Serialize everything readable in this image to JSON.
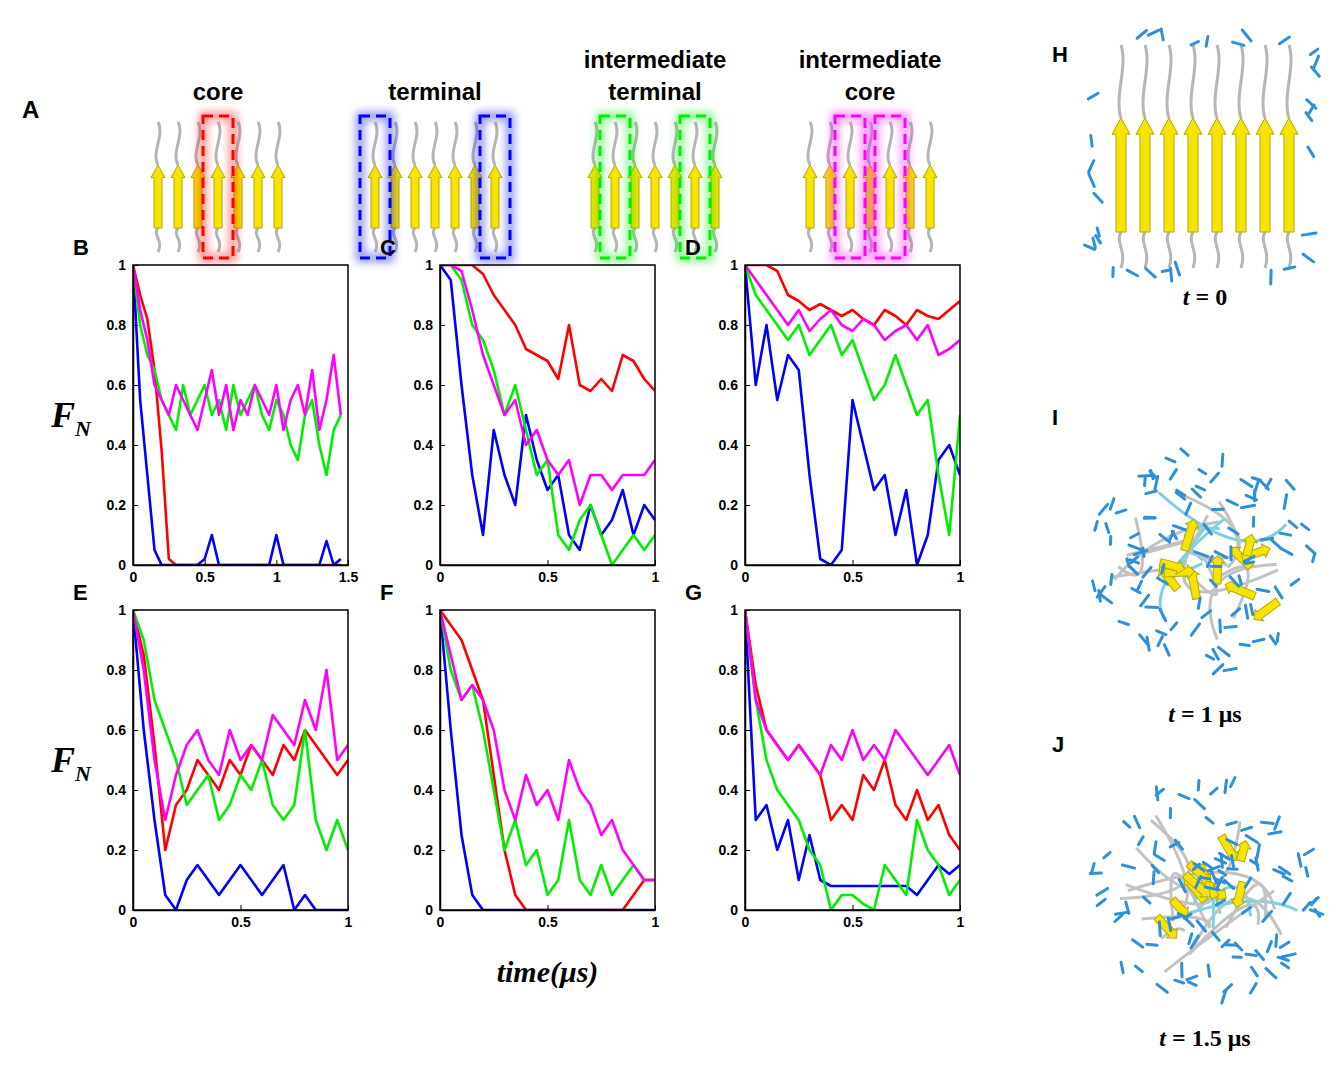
{
  "figure": {
    "panel_a": {
      "label": "A",
      "regions": [
        {
          "name": "core",
          "color": "#ff0000"
        },
        {
          "name": "terminal",
          "color": "#0000ff"
        },
        {
          "name": "intermediate terminal",
          "color": "#00ee00"
        },
        {
          "name": "intermediate core",
          "color": "#ff00ff"
        }
      ]
    },
    "y_title": "F",
    "y_title_subscript": "N",
    "x_title": "time(μs)",
    "snapshots": [
      {
        "label": "H",
        "caption": "t = 0"
      },
      {
        "label": "I",
        "caption": "t = 1 μs"
      },
      {
        "label": "J",
        "caption": "t = 1.5 μs"
      }
    ]
  },
  "chart_data": [
    {
      "type": "line",
      "title": "B",
      "x": [
        0,
        0.05,
        0.1,
        0.15,
        0.2,
        0.25,
        0.3,
        0.35,
        0.4,
        0.45,
        0.5,
        0.55,
        0.6,
        0.65,
        0.7,
        0.75,
        0.8,
        0.85,
        0.9,
        0.95,
        1,
        1.05,
        1.1,
        1.15,
        1.2,
        1.25,
        1.3,
        1.35,
        1.4,
        1.45
      ],
      "xlim": [
        0,
        1.5
      ],
      "xticks": [
        0,
        0.5,
        1,
        1.5
      ],
      "ylim": [
        0,
        1
      ],
      "yticks": [
        0,
        0.2,
        0.4,
        0.6,
        0.8,
        1
      ],
      "series": [
        {
          "color": "#ff0000",
          "values": [
            1,
            0.9,
            0.82,
            0.65,
            0.38,
            0.02,
            0,
            0,
            0,
            0,
            0,
            0,
            0,
            0,
            0,
            0,
            0,
            0,
            0,
            0,
            0,
            0,
            0,
            0,
            0,
            0,
            0,
            0,
            0,
            0
          ]
        },
        {
          "color": "#0000ff",
          "values": [
            1,
            0.55,
            0.3,
            0.05,
            0,
            0,
            0,
            0,
            0,
            0,
            0.02,
            0.1,
            0,
            0,
            0,
            0,
            0,
            0,
            0,
            0,
            0.1,
            0,
            0,
            0,
            0,
            0,
            0,
            0.08,
            0,
            0.02
          ]
        },
        {
          "color": "#00ee00",
          "values": [
            1,
            0.8,
            0.7,
            0.65,
            0.55,
            0.5,
            0.45,
            0.6,
            0.5,
            0.55,
            0.6,
            0.5,
            0.55,
            0.45,
            0.6,
            0.5,
            0.55,
            0.6,
            0.5,
            0.45,
            0.55,
            0.5,
            0.4,
            0.35,
            0.5,
            0.55,
            0.4,
            0.3,
            0.45,
            0.5
          ]
        },
        {
          "color": "#ff00ff",
          "values": [
            1,
            0.85,
            0.75,
            0.6,
            0.55,
            0.5,
            0.6,
            0.55,
            0.5,
            0.45,
            0.55,
            0.65,
            0.5,
            0.6,
            0.45,
            0.55,
            0.5,
            0.6,
            0.55,
            0.5,
            0.6,
            0.45,
            0.55,
            0.6,
            0.5,
            0.65,
            0.45,
            0.55,
            0.7,
            0.5
          ]
        }
      ]
    },
    {
      "type": "line",
      "title": "C",
      "x": [
        0,
        0.05,
        0.1,
        0.15,
        0.2,
        0.25,
        0.3,
        0.35,
        0.4,
        0.45,
        0.5,
        0.55,
        0.6,
        0.65,
        0.7,
        0.75,
        0.8,
        0.85,
        0.9,
        0.95,
        1
      ],
      "xlim": [
        0,
        1
      ],
      "xticks": [
        0,
        0.5,
        1
      ],
      "ylim": [
        0,
        1
      ],
      "yticks": [
        0,
        0.2,
        0.4,
        0.6,
        0.8,
        1
      ],
      "series": [
        {
          "color": "#ff0000",
          "values": [
            1,
            1,
            1,
            1,
            0.97,
            0.9,
            0.85,
            0.8,
            0.72,
            0.7,
            0.68,
            0.62,
            0.8,
            0.6,
            0.58,
            0.62,
            0.58,
            0.7,
            0.68,
            0.62,
            0.58
          ]
        },
        {
          "color": "#0000ff",
          "values": [
            1,
            0.95,
            0.6,
            0.3,
            0.1,
            0.45,
            0.3,
            0.2,
            0.5,
            0.35,
            0.25,
            0.3,
            0.1,
            0.05,
            0.2,
            0.1,
            0.15,
            0.25,
            0.1,
            0.2,
            0.15
          ]
        },
        {
          "color": "#00ee00",
          "values": [
            1,
            1,
            0.95,
            0.8,
            0.75,
            0.65,
            0.5,
            0.6,
            0.45,
            0.3,
            0.35,
            0.1,
            0.05,
            0.15,
            0.2,
            0.1,
            0,
            0.05,
            0.1,
            0.05,
            0.1
          ]
        },
        {
          "color": "#ff00ff",
          "values": [
            1,
            1,
            0.98,
            0.85,
            0.7,
            0.6,
            0.5,
            0.55,
            0.4,
            0.45,
            0.35,
            0.3,
            0.35,
            0.2,
            0.3,
            0.3,
            0.25,
            0.3,
            0.3,
            0.3,
            0.35
          ]
        }
      ]
    },
    {
      "type": "line",
      "title": "D",
      "x": [
        0,
        0.05,
        0.1,
        0.15,
        0.2,
        0.25,
        0.3,
        0.35,
        0.4,
        0.45,
        0.5,
        0.55,
        0.6,
        0.65,
        0.7,
        0.75,
        0.8,
        0.85,
        0.9,
        0.95,
        1
      ],
      "xlim": [
        0,
        1
      ],
      "xticks": [
        0,
        0.5,
        1
      ],
      "ylim": [
        0,
        1
      ],
      "yticks": [
        0,
        0.2,
        0.4,
        0.6,
        0.8,
        1
      ],
      "series": [
        {
          "color": "#ff0000",
          "values": [
            1,
            1,
            1,
            0.98,
            0.9,
            0.88,
            0.85,
            0.87,
            0.85,
            0.83,
            0.85,
            0.82,
            0.8,
            0.85,
            0.83,
            0.8,
            0.85,
            0.83,
            0.82,
            0.85,
            0.88
          ]
        },
        {
          "color": "#0000ff",
          "values": [
            1,
            0.6,
            0.8,
            0.55,
            0.7,
            0.65,
            0.3,
            0.02,
            0,
            0.05,
            0.55,
            0.4,
            0.25,
            0.3,
            0.1,
            0.25,
            0,
            0.1,
            0.35,
            0.4,
            0.3
          ]
        },
        {
          "color": "#00ee00",
          "values": [
            1,
            0.9,
            0.85,
            0.8,
            0.75,
            0.8,
            0.7,
            0.75,
            0.8,
            0.7,
            0.75,
            0.65,
            0.55,
            0.6,
            0.7,
            0.6,
            0.5,
            0.55,
            0.3,
            0.1,
            0.5
          ]
        },
        {
          "color": "#ff00ff",
          "values": [
            1,
            0.95,
            0.9,
            0.85,
            0.8,
            0.85,
            0.78,
            0.82,
            0.85,
            0.8,
            0.78,
            0.82,
            0.8,
            0.75,
            0.78,
            0.8,
            0.75,
            0.8,
            0.7,
            0.72,
            0.75
          ]
        }
      ]
    },
    {
      "type": "line",
      "title": "E",
      "x": [
        0,
        0.05,
        0.1,
        0.15,
        0.2,
        0.25,
        0.3,
        0.35,
        0.4,
        0.45,
        0.5,
        0.55,
        0.6,
        0.65,
        0.7,
        0.75,
        0.8,
        0.85,
        0.9,
        0.95,
        1
      ],
      "xlim": [
        0,
        1
      ],
      "xticks": [
        0,
        0.5,
        1
      ],
      "ylim": [
        0,
        1
      ],
      "yticks": [
        0,
        0.2,
        0.4,
        0.6,
        0.8,
        1
      ],
      "series": [
        {
          "color": "#ff0000",
          "values": [
            1,
            0.85,
            0.55,
            0.2,
            0.35,
            0.4,
            0.5,
            0.45,
            0.4,
            0.5,
            0.45,
            0.55,
            0.5,
            0.45,
            0.55,
            0.5,
            0.6,
            0.55,
            0.5,
            0.45,
            0.5
          ]
        },
        {
          "color": "#0000ff",
          "values": [
            1,
            0.6,
            0.3,
            0.05,
            0,
            0.1,
            0.15,
            0.1,
            0.05,
            0.1,
            0.15,
            0.1,
            0.05,
            0.1,
            0.15,
            0,
            0.05,
            0,
            0,
            0,
            0
          ]
        },
        {
          "color": "#00ee00",
          "values": [
            1,
            0.9,
            0.7,
            0.6,
            0.5,
            0.35,
            0.4,
            0.45,
            0.3,
            0.35,
            0.45,
            0.4,
            0.5,
            0.35,
            0.3,
            0.35,
            0.6,
            0.3,
            0.2,
            0.3,
            0.2
          ]
        },
        {
          "color": "#ff00ff",
          "values": [
            1,
            0.8,
            0.5,
            0.3,
            0.45,
            0.55,
            0.6,
            0.5,
            0.45,
            0.6,
            0.5,
            0.55,
            0.5,
            0.65,
            0.6,
            0.55,
            0.7,
            0.6,
            0.8,
            0.5,
            0.55
          ]
        }
      ]
    },
    {
      "type": "line",
      "title": "F",
      "x": [
        0,
        0.05,
        0.1,
        0.15,
        0.2,
        0.25,
        0.3,
        0.35,
        0.4,
        0.45,
        0.5,
        0.55,
        0.6,
        0.65,
        0.7,
        0.75,
        0.8,
        0.85,
        0.9,
        0.95,
        1
      ],
      "xlim": [
        0,
        1
      ],
      "xticks": [
        0,
        0.5,
        1
      ],
      "ylim": [
        0,
        1
      ],
      "yticks": [
        0,
        0.2,
        0.4,
        0.6,
        0.8,
        1
      ],
      "series": [
        {
          "color": "#ff0000",
          "values": [
            1,
            0.95,
            0.9,
            0.8,
            0.7,
            0.45,
            0.2,
            0.05,
            0,
            0,
            0,
            0,
            0,
            0,
            0,
            0,
            0,
            0,
            0.05,
            0.1,
            0.1
          ]
        },
        {
          "color": "#0000ff",
          "values": [
            1,
            0.6,
            0.25,
            0.05,
            0,
            0,
            0,
            0,
            0,
            0,
            0,
            0,
            0,
            0,
            0,
            0,
            0,
            0,
            0,
            0,
            0
          ]
        },
        {
          "color": "#00ee00",
          "values": [
            1,
            0.8,
            0.7,
            0.75,
            0.6,
            0.4,
            0.2,
            0.3,
            0.15,
            0.2,
            0.05,
            0.1,
            0.3,
            0.1,
            0.05,
            0.15,
            0.05,
            0.1,
            0.15,
            0.1,
            0.1
          ]
        },
        {
          "color": "#ff00ff",
          "values": [
            1,
            0.85,
            0.7,
            0.75,
            0.7,
            0.6,
            0.4,
            0.3,
            0.45,
            0.35,
            0.4,
            0.3,
            0.5,
            0.4,
            0.35,
            0.25,
            0.3,
            0.2,
            0.15,
            0.1,
            0.1
          ]
        }
      ]
    },
    {
      "type": "line",
      "title": "G",
      "x": [
        0,
        0.05,
        0.1,
        0.15,
        0.2,
        0.25,
        0.3,
        0.35,
        0.4,
        0.45,
        0.5,
        0.55,
        0.6,
        0.65,
        0.7,
        0.75,
        0.8,
        0.85,
        0.9,
        0.95,
        1
      ],
      "xlim": [
        0,
        1
      ],
      "xticks": [
        0,
        0.5,
        1
      ],
      "ylim": [
        0,
        1
      ],
      "yticks": [
        0,
        0.2,
        0.4,
        0.6,
        0.8,
        1
      ],
      "series": [
        {
          "color": "#ff0000",
          "values": [
            1,
            0.75,
            0.6,
            0.55,
            0.5,
            0.55,
            0.5,
            0.45,
            0.3,
            0.35,
            0.3,
            0.45,
            0.4,
            0.5,
            0.35,
            0.3,
            0.4,
            0.3,
            0.35,
            0.25,
            0.2
          ]
        },
        {
          "color": "#0000ff",
          "values": [
            1,
            0.3,
            0.35,
            0.2,
            0.3,
            0.1,
            0.25,
            0.1,
            0.08,
            0.08,
            0.08,
            0.08,
            0.08,
            0.08,
            0.08,
            0.08,
            0.05,
            0.1,
            0.15,
            0.12,
            0.15
          ]
        },
        {
          "color": "#00ee00",
          "values": [
            1,
            0.7,
            0.5,
            0.4,
            0.35,
            0.3,
            0.2,
            0.15,
            0,
            0.05,
            0.05,
            0.02,
            0,
            0.15,
            0.1,
            0.05,
            0.3,
            0.2,
            0.15,
            0.05,
            0.1
          ]
        },
        {
          "color": "#ff00ff",
          "values": [
            1,
            0.7,
            0.6,
            0.55,
            0.5,
            0.55,
            0.5,
            0.45,
            0.55,
            0.5,
            0.6,
            0.5,
            0.55,
            0.5,
            0.6,
            0.55,
            0.5,
            0.45,
            0.5,
            0.55,
            0.45
          ]
        }
      ]
    }
  ]
}
